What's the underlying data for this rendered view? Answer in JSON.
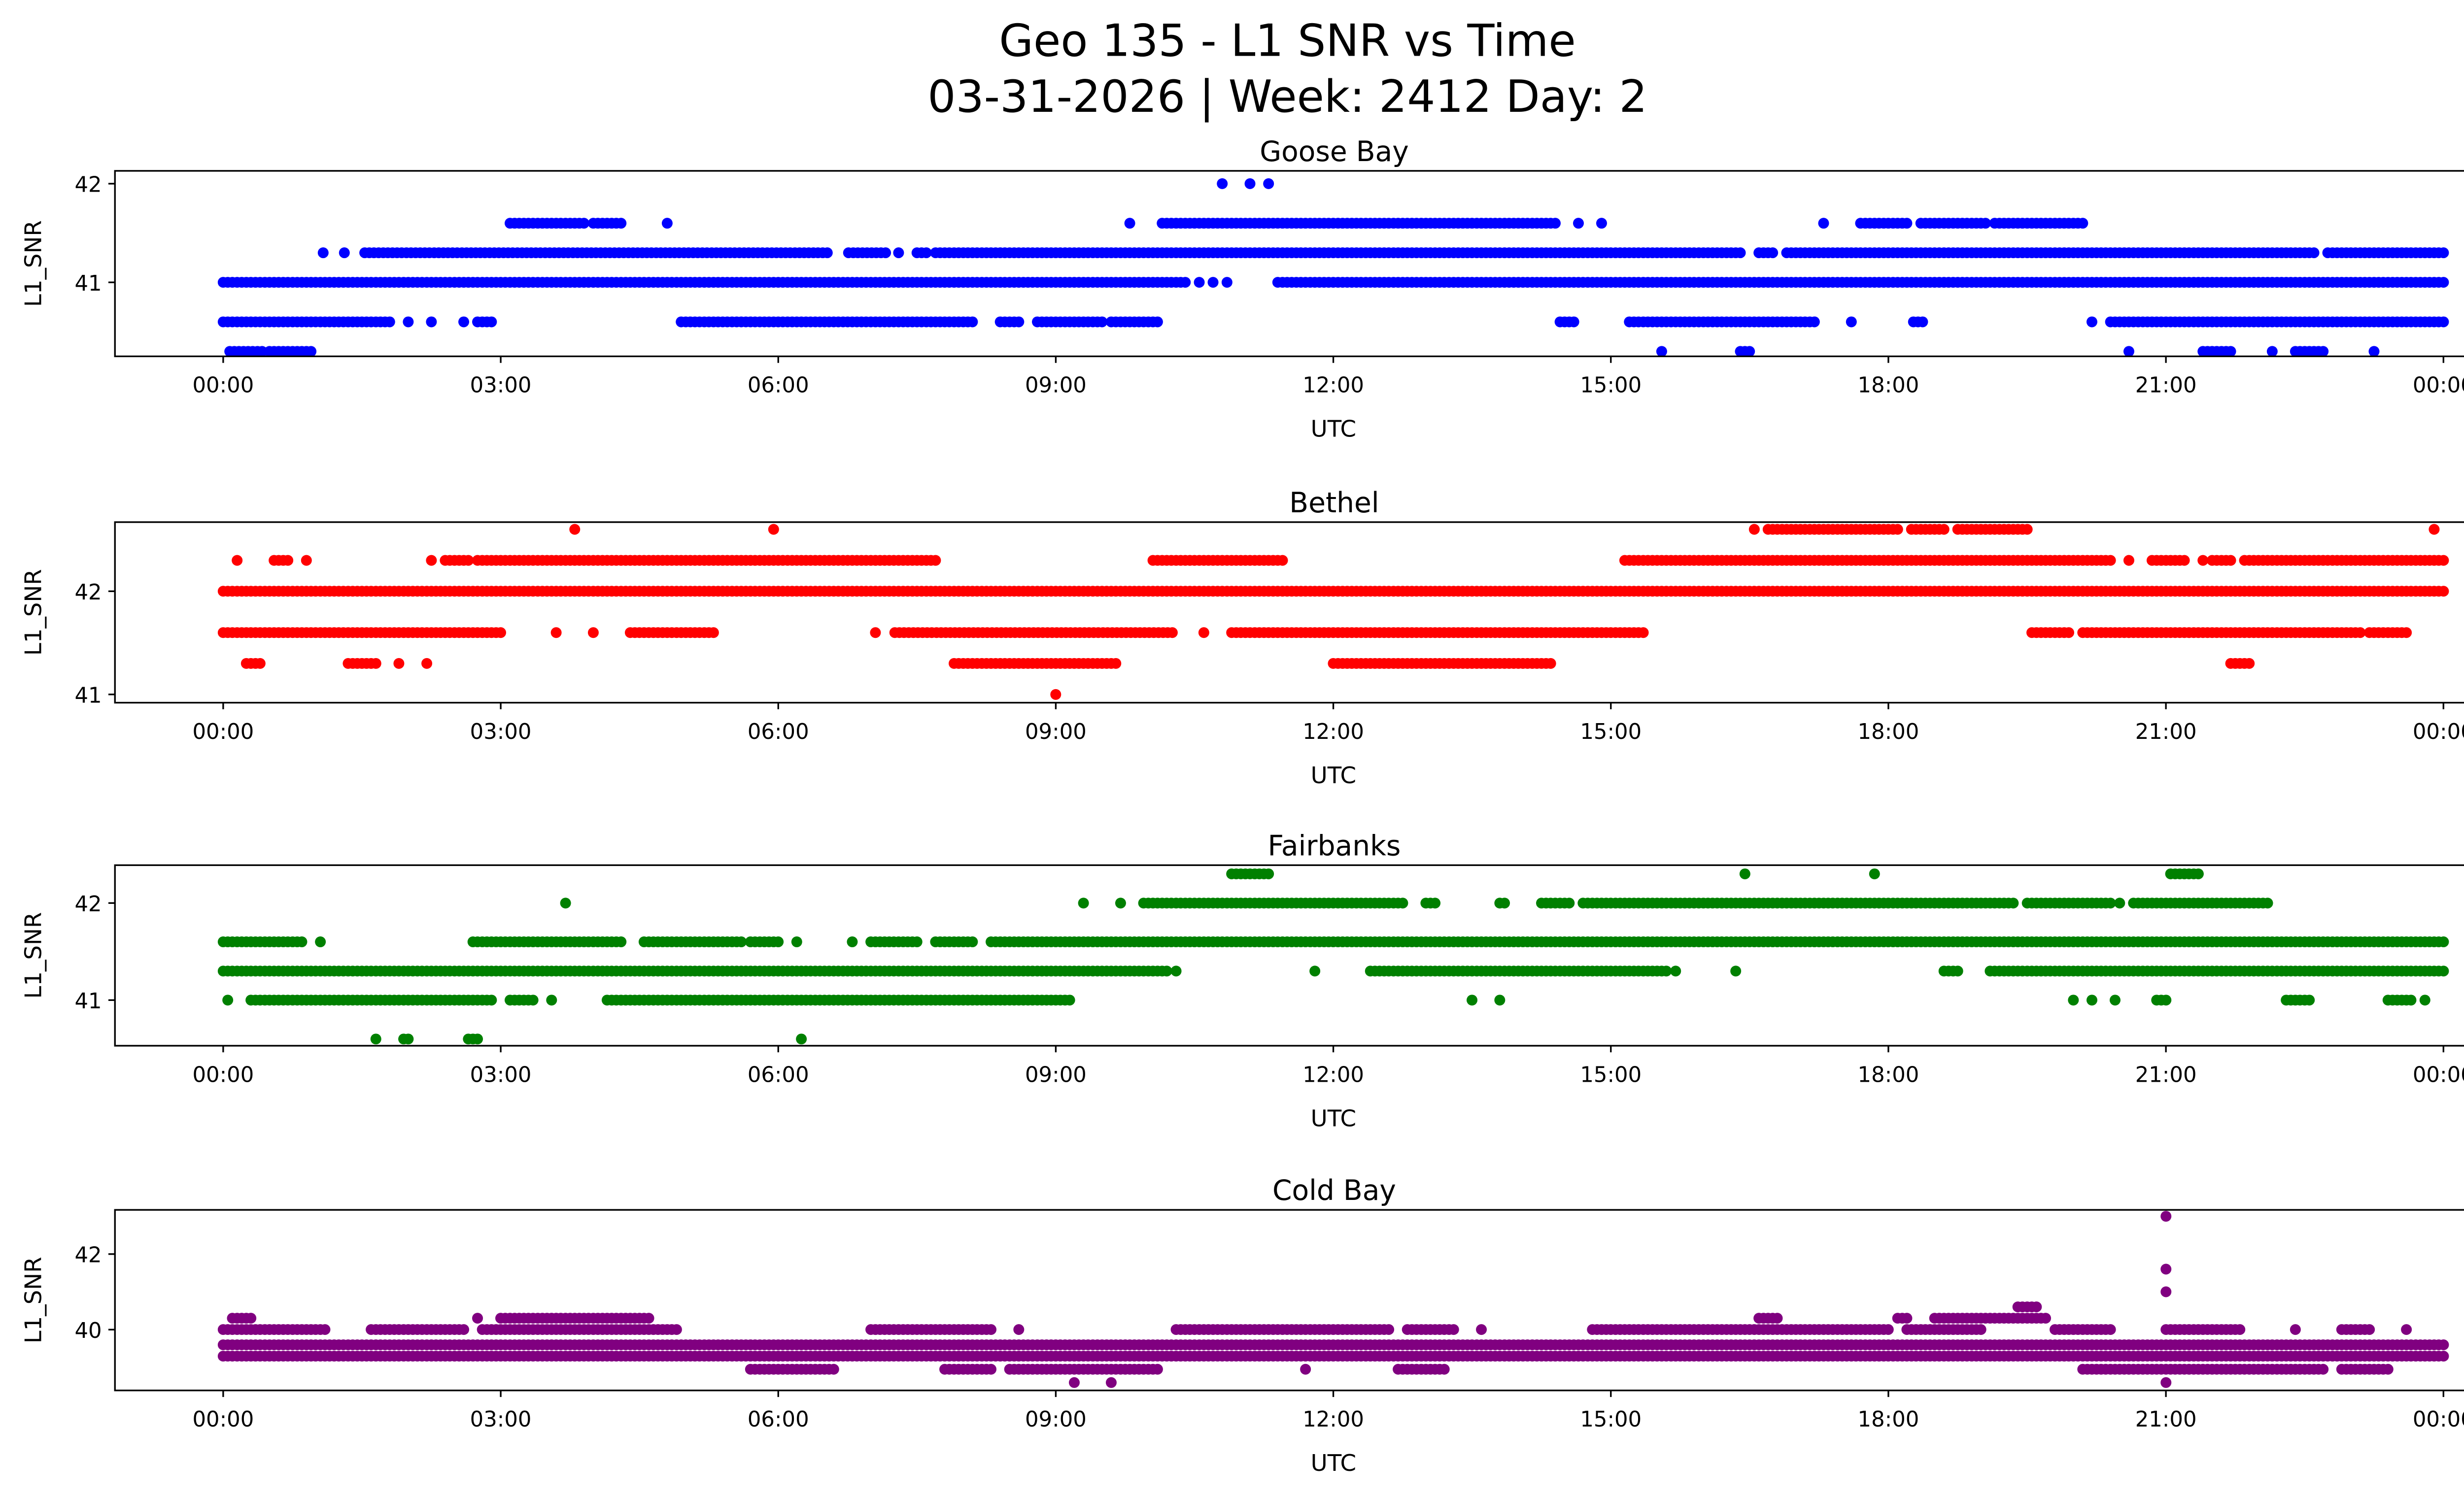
{
  "chart_data": {
    "type": "scatter",
    "title_line1": "Geo 135 - L1 SNR vs Time",
    "title_line2": "03-31-2026 | Week: 2412 Day: 2",
    "x_tick_labels": [
      "00:00",
      "03:00",
      "06:00",
      "09:00",
      "12:00",
      "15:00",
      "18:00",
      "21:00",
      "00:00"
    ],
    "x_ticks_hours": [
      0,
      3,
      6,
      9,
      12,
      15,
      18,
      21,
      24
    ],
    "xlim_hours": [
      -1.17,
      25.19
    ],
    "note_runs": "runs are [start_hour, end_hour] UTC intervals of near-continuous samples at the given SNR value",
    "subplots": [
      {
        "title": "Goose Bay",
        "xlabel": "UTC",
        "ylabel": "L1_SNR",
        "color": "#0000ff",
        "ylim": [
          40.25,
          42.13
        ],
        "y_ticks": [
          41,
          42
        ],
        "y_tick_labels": [
          "41",
          "42"
        ],
        "levels": [
          {
            "value": 42.0,
            "runs": [
              [
                10.8,
                10.8
              ],
              [
                11.1,
                11.1
              ],
              [
                11.3,
                11.3
              ]
            ]
          },
          {
            "value": 41.6,
            "runs": [
              [
                3.1,
                3.9
              ],
              [
                4.0,
                4.3
              ],
              [
                4.8,
                4.8
              ],
              [
                9.8,
                9.8
              ],
              [
                10.15,
                14.4
              ],
              [
                14.65,
                14.65
              ],
              [
                14.9,
                14.9
              ],
              [
                17.3,
                17.3
              ],
              [
                17.7,
                18.2
              ],
              [
                18.35,
                19.05
              ],
              [
                19.15,
                20.1
              ]
            ]
          },
          {
            "value": 41.3,
            "runs": [
              [
                1.08,
                1.08
              ],
              [
                1.31,
                1.31
              ],
              [
                1.53,
                6.55
              ],
              [
                6.76,
                7.17
              ],
              [
                7.3,
                7.3
              ],
              [
                7.5,
                7.6
              ],
              [
                7.7,
                16.4
              ],
              [
                16.6,
                16.75
              ],
              [
                16.9,
                22.6
              ],
              [
                22.75,
                24
              ]
            ]
          },
          {
            "value": 41.0,
            "runs": [
              [
                0,
                10.4
              ],
              [
                10.55,
                10.55
              ],
              [
                10.7,
                10.7
              ],
              [
                10.85,
                10.85
              ],
              [
                11.4,
                24
              ]
            ]
          },
          {
            "value": 40.6,
            "runs": [
              [
                0,
                1.8
              ],
              [
                2.0,
                2.0
              ],
              [
                2.25,
                2.25
              ],
              [
                2.6,
                2.6
              ],
              [
                2.75,
                2.9
              ],
              [
                4.95,
                8.1
              ],
              [
                8.4,
                8.6
              ],
              [
                8.8,
                9.5
              ],
              [
                9.6,
                10.1
              ],
              [
                14.45,
                14.6
              ],
              [
                15.2,
                17.2
              ],
              [
                17.6,
                17.6
              ],
              [
                18.27,
                18.4
              ],
              [
                20.2,
                20.2
              ],
              [
                20.4,
                24
              ]
            ]
          },
          {
            "value": 40.3,
            "runs": [
              [
                0.07,
                0.43
              ],
              [
                0.5,
                0.95
              ],
              [
                15.55,
                15.55
              ],
              [
                16.4,
                16.5
              ],
              [
                20.6,
                20.6
              ],
              [
                21.4,
                21.7
              ],
              [
                22.15,
                22.15
              ],
              [
                22.4,
                22.7
              ],
              [
                23.25,
                23.25
              ]
            ]
          }
        ]
      },
      {
        "title": "Bethel",
        "xlabel": "UTC",
        "ylabel": "L1_SNR",
        "color": "#ff0000",
        "ylim": [
          40.92,
          42.67
        ],
        "y_ticks": [
          41,
          42
        ],
        "y_tick_labels": [
          "41",
          "42"
        ],
        "levels": [
          {
            "value": 42.6,
            "runs": [
              [
                3.8,
                3.8
              ],
              [
                5.95,
                5.95
              ],
              [
                16.55,
                16.55
              ],
              [
                16.7,
                18.1
              ],
              [
                18.25,
                18.6
              ],
              [
                18.75,
                19.5
              ],
              [
                23.9,
                23.9
              ]
            ]
          },
          {
            "value": 42.3,
            "runs": [
              [
                0.15,
                0.15
              ],
              [
                0.55,
                0.7
              ],
              [
                0.9,
                0.9
              ],
              [
                2.25,
                2.25
              ],
              [
                2.4,
                2.65
              ],
              [
                2.75,
                7.7
              ],
              [
                10.05,
                11.45
              ],
              [
                15.15,
                20.4
              ],
              [
                20.6,
                20.6
              ],
              [
                20.85,
                21.2
              ],
              [
                21.4,
                21.4
              ],
              [
                21.5,
                21.7
              ],
              [
                21.85,
                24
              ]
            ]
          },
          {
            "value": 42.0,
            "runs": [
              [
                0,
                24
              ]
            ]
          },
          {
            "value": 41.6,
            "runs": [
              [
                0,
                3.0
              ],
              [
                3.6,
                3.6
              ],
              [
                4.0,
                4.0
              ],
              [
                4.4,
                5.3
              ],
              [
                7.05,
                7.05
              ],
              [
                7.26,
                10.28
              ],
              [
                10.6,
                10.6
              ],
              [
                10.9,
                15.35
              ],
              [
                19.55,
                19.95
              ],
              [
                20.1,
                23.1
              ],
              [
                23.2,
                23.6
              ]
            ]
          },
          {
            "value": 41.3,
            "runs": [
              [
                0.25,
                0.4
              ],
              [
                1.35,
                1.65
              ],
              [
                1.9,
                1.9
              ],
              [
                2.2,
                2.2
              ],
              [
                7.9,
                9.65
              ],
              [
                12.0,
                14.35
              ],
              [
                21.7,
                21.9
              ]
            ]
          },
          {
            "value": 41.0,
            "runs": [
              [
                9.0,
                9.0
              ]
            ]
          }
        ]
      },
      {
        "title": "Fairbanks",
        "xlabel": "UTC",
        "ylabel": "L1_SNR",
        "color": "#008000",
        "ylim": [
          40.53,
          42.39
        ],
        "y_ticks": [
          41,
          42
        ],
        "y_tick_labels": [
          "41",
          "42"
        ],
        "levels": [
          {
            "value": 42.3,
            "runs": [
              [
                10.9,
                11.3
              ],
              [
                16.45,
                16.45
              ],
              [
                17.85,
                17.85
              ],
              [
                21.05,
                21.35
              ]
            ]
          },
          {
            "value": 42.0,
            "runs": [
              [
                3.7,
                3.7
              ],
              [
                9.3,
                9.3
              ],
              [
                9.7,
                9.7
              ],
              [
                9.95,
                12.75
              ],
              [
                13.0,
                13.1
              ],
              [
                13.8,
                13.85
              ],
              [
                14.25,
                14.55
              ],
              [
                14.7,
                19.35
              ],
              [
                19.5,
                20.4
              ],
              [
                20.5,
                20.5
              ],
              [
                20.65,
                22.1
              ]
            ]
          },
          {
            "value": 41.6,
            "runs": [
              [
                0,
                0.87
              ],
              [
                1.05,
                1.05
              ],
              [
                2.7,
                3.0
              ],
              [
                3.05,
                4.3
              ],
              [
                4.55,
                5.6
              ],
              [
                5.7,
                6.0
              ],
              [
                6.2,
                6.2
              ],
              [
                6.8,
                6.8
              ],
              [
                7.0,
                7.5
              ],
              [
                7.7,
                8.1
              ],
              [
                8.3,
                24
              ]
            ]
          },
          {
            "value": 41.3,
            "runs": [
              [
                0,
                10.2
              ],
              [
                10.3,
                10.3
              ],
              [
                11.8,
                11.8
              ],
              [
                12.4,
                15.6
              ],
              [
                15.7,
                15.7
              ],
              [
                16.35,
                16.35
              ],
              [
                18.6,
                18.75
              ],
              [
                19.1,
                24
              ]
            ]
          },
          {
            "value": 41.0,
            "runs": [
              [
                0.05,
                0.05
              ],
              [
                0.3,
                2.9
              ],
              [
                3.1,
                3.35
              ],
              [
                3.55,
                3.55
              ],
              [
                4.15,
                9.15
              ],
              [
                13.5,
                13.5
              ],
              [
                13.8,
                13.8
              ],
              [
                20.0,
                20.0
              ],
              [
                20.2,
                20.2
              ],
              [
                20.45,
                20.45
              ],
              [
                20.9,
                21.0
              ],
              [
                22.3,
                22.55
              ],
              [
                23.4,
                23.65
              ],
              [
                23.8,
                23.8
              ]
            ]
          },
          {
            "value": 40.6,
            "runs": [
              [
                1.65,
                1.65
              ],
              [
                1.95,
                2.0
              ],
              [
                2.65,
                2.75
              ],
              [
                6.25,
                6.25
              ]
            ]
          }
        ]
      },
      {
        "title": "Cold Bay",
        "xlabel": "UTC",
        "ylabel": "L1_SNR",
        "color": "#800080",
        "ylim": [
          38.39,
          43.17
        ],
        "y_ticks": [
          40,
          42
        ],
        "y_tick_labels": [
          "40",
          "42"
        ],
        "levels": [
          {
            "value": 43.0,
            "runs": [
              [
                21.0,
                21.0
              ]
            ]
          },
          {
            "value": 41.6,
            "runs": [
              [
                21.0,
                21.0
              ]
            ]
          },
          {
            "value": 41.0,
            "runs": [
              [
                21.0,
                21.0
              ]
            ]
          },
          {
            "value": 40.6,
            "runs": [
              [
                19.4,
                19.6
              ]
            ]
          },
          {
            "value": 40.3,
            "runs": [
              [
                0.1,
                0.3
              ],
              [
                2.75,
                2.75
              ],
              [
                3.0,
                4.6
              ],
              [
                16.6,
                16.8
              ],
              [
                18.1,
                18.2
              ],
              [
                18.5,
                19.7
              ]
            ]
          },
          {
            "value": 40.0,
            "runs": [
              [
                0,
                1.1
              ],
              [
                1.6,
                2.6
              ],
              [
                2.8,
                4.9
              ],
              [
                7.0,
                8.3
              ],
              [
                8.6,
                8.6
              ],
              [
                10.3,
                12.6
              ],
              [
                12.8,
                13.3
              ],
              [
                13.6,
                13.6
              ],
              [
                14.8,
                18.0
              ],
              [
                18.2,
                19.0
              ],
              [
                19.8,
                20.4
              ],
              [
                21.0,
                21.8
              ],
              [
                22.4,
                22.4
              ],
              [
                22.9,
                23.2
              ],
              [
                23.6,
                23.6
              ]
            ]
          },
          {
            "value": 39.6,
            "runs": [
              [
                0,
                24
              ]
            ]
          },
          {
            "value": 39.3,
            "runs": [
              [
                0,
                24
              ]
            ]
          },
          {
            "value": 38.95,
            "runs": [
              [
                5.7,
                6.6
              ],
              [
                7.8,
                8.3
              ],
              [
                8.5,
                10.1
              ],
              [
                11.7,
                11.7
              ],
              [
                12.7,
                13.2
              ],
              [
                20.1,
                22.7
              ],
              [
                22.9,
                23.4
              ]
            ]
          },
          {
            "value": 38.6,
            "runs": [
              [
                9.2,
                9.2
              ],
              [
                9.6,
                9.6
              ],
              [
                21.0,
                21.0
              ]
            ]
          }
        ]
      }
    ]
  }
}
